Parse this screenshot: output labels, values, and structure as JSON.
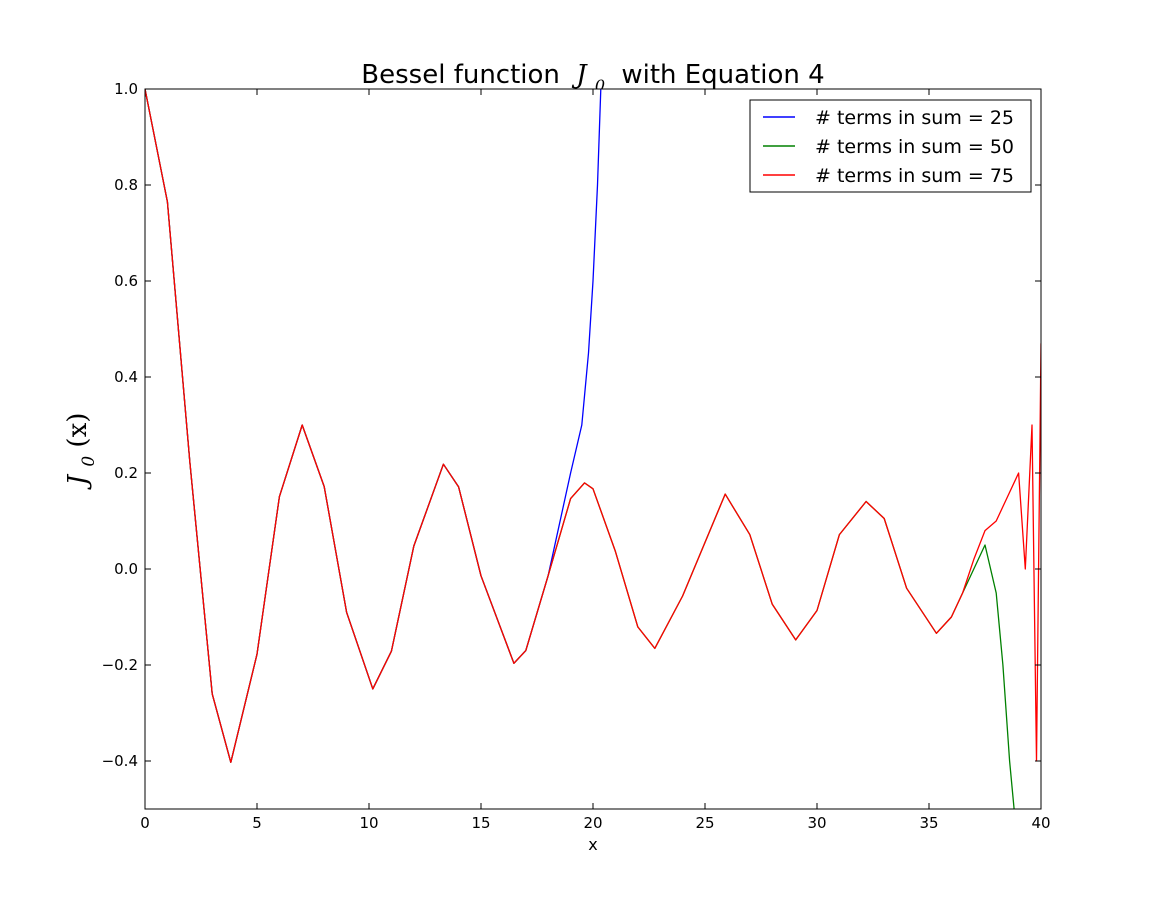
{
  "chart_data": {
    "type": "line",
    "title": "Bessel function J_0 with Equation 4",
    "title_parts": {
      "prefix": "Bessel function",
      "math_main": "J",
      "math_sub": "0",
      "suffix": "with Equation 4"
    },
    "xlabel": "x",
    "ylabel": "J_0(x)",
    "ylabel_parts": {
      "main": "J",
      "sub": "0",
      "rest": "(x)"
    },
    "xlim": [
      0,
      40
    ],
    "ylim": [
      -0.5,
      1.0
    ],
    "xticks": [
      0,
      5,
      10,
      15,
      20,
      25,
      30,
      35,
      40
    ],
    "xtick_labels": [
      "0",
      "5",
      "10",
      "15",
      "20",
      "25",
      "30",
      "35",
      "40"
    ],
    "yticks": [
      -0.4,
      -0.2,
      0.0,
      0.2,
      0.4,
      0.6,
      0.8,
      1.0
    ],
    "ytick_labels": [
      "−0.4",
      "−0.2",
      "0.0",
      "0.2",
      "0.4",
      "0.6",
      "0.8",
      "1.0"
    ],
    "grid": false,
    "legend_position": "top-right",
    "series": [
      {
        "name": "# terms in sum = 25",
        "color": "#0000ff",
        "x": [
          0,
          1,
          2,
          3,
          3.83,
          5,
          6,
          7.02,
          8,
          9,
          10.17,
          11,
          12,
          13.32,
          14,
          15,
          16.47,
          17,
          18,
          19,
          19.5,
          19.8,
          20,
          20.2,
          20.35
        ],
        "y": [
          1.0,
          0.7652,
          0.2239,
          -0.2601,
          -0.4028,
          -0.1776,
          0.1506,
          0.3001,
          0.1717,
          -0.0903,
          -0.2497,
          -0.1712,
          0.0477,
          0.2184,
          0.1711,
          -0.0142,
          -0.1965,
          -0.1699,
          -0.0134,
          0.2,
          0.3,
          0.45,
          0.6,
          0.8,
          1.0
        ]
      },
      {
        "name": "# terms in sum = 50",
        "color": "#008000",
        "x": [
          0,
          1,
          2,
          3,
          3.83,
          5,
          6,
          7.02,
          8,
          9,
          10.17,
          11,
          12,
          13.32,
          14,
          15,
          16.47,
          17,
          18,
          19,
          19.62,
          20,
          21,
          22,
          22.76,
          24,
          25.9,
          27,
          28,
          29.05,
          30,
          31,
          32.19,
          33,
          34,
          35.33,
          36,
          37,
          37.5,
          38,
          38.3,
          38.6,
          38.8
        ],
        "y": [
          1.0,
          0.7652,
          0.2239,
          -0.2601,
          -0.4028,
          -0.1776,
          0.1506,
          0.3001,
          0.1717,
          -0.0903,
          -0.2497,
          -0.1712,
          0.0477,
          0.2184,
          0.1711,
          -0.0142,
          -0.1965,
          -0.1699,
          -0.0134,
          0.1466,
          0.1793,
          0.167,
          0.0366,
          -0.1207,
          -0.1655,
          -0.0562,
          0.156,
          0.0717,
          -0.0732,
          -0.1478,
          -0.0864,
          0.0716,
          0.1406,
          0.1053,
          -0.04,
          -0.134,
          -0.1,
          0.0,
          0.05,
          -0.05,
          -0.2,
          -0.4,
          -0.5
        ]
      },
      {
        "name": "# terms in sum = 75",
        "color": "#ff0000",
        "x": [
          0,
          1,
          2,
          3,
          3.83,
          5,
          6,
          7.02,
          8,
          9,
          10.17,
          11,
          12,
          13.32,
          14,
          15,
          16.47,
          17,
          18,
          19,
          19.62,
          20,
          21,
          22,
          22.76,
          24,
          25.9,
          27,
          28,
          29.05,
          30,
          31,
          32.19,
          33,
          34,
          35.33,
          36,
          36.5,
          37,
          37.5,
          38,
          38.5,
          39,
          39.3,
          39.6,
          39.8,
          40
        ],
        "y": [
          1.0,
          0.7652,
          0.2239,
          -0.2601,
          -0.4028,
          -0.1776,
          0.1506,
          0.3001,
          0.1717,
          -0.0903,
          -0.2497,
          -0.1712,
          0.0477,
          0.2184,
          0.1711,
          -0.0142,
          -0.1965,
          -0.1699,
          -0.0134,
          0.1466,
          0.1793,
          0.167,
          0.0366,
          -0.1207,
          -0.1655,
          -0.0562,
          0.156,
          0.0717,
          -0.0732,
          -0.1478,
          -0.0864,
          0.0716,
          0.1406,
          0.1053,
          -0.04,
          -0.134,
          -0.1,
          -0.05,
          0.02,
          0.08,
          0.1,
          0.15,
          0.2,
          0.0,
          0.3,
          -0.4,
          0.47
        ]
      }
    ]
  }
}
